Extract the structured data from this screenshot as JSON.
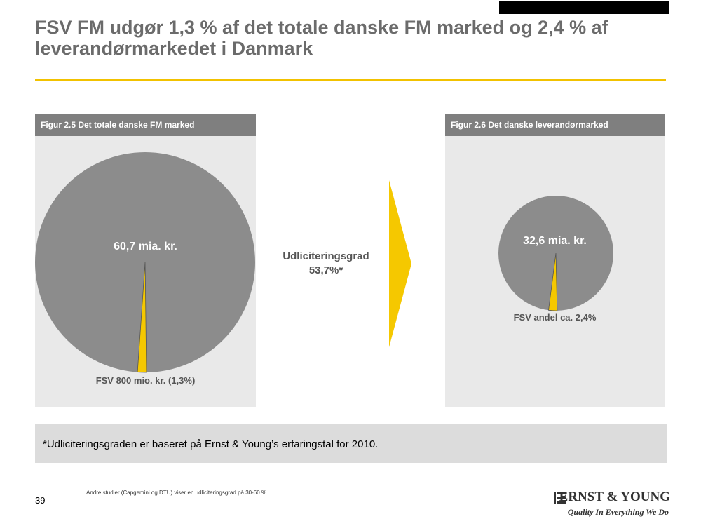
{
  "title": "FSV FM udgør 1,3 % af det totale danske FM marked og 2,4 % af leverandørmarkedet i Danmark",
  "middle": {
    "line1": "Udliciteringsgrad",
    "line2": "53,7%*"
  },
  "note": "*Udliciteringsgraden er baseret på Ernst & Young’s erfaringstal for 2010.",
  "footer": {
    "page_number": "39",
    "footnote": "Andre studier (Capgemini og DTU) viser en udliciteringsgrad på 30-60 %",
    "logo_name": "ERNST & YOUNG",
    "logo_tagline": "Quality In Everything We Do"
  },
  "colors": {
    "pie_grey": "#8c8c8c",
    "highlight": "#f5c800",
    "accent_rule": "#f2c200"
  },
  "chart_data": [
    {
      "type": "pie",
      "title": "Figur 2.5 Det totale danske FM marked",
      "total_label": "60,7 mia. kr.",
      "share_label": "FSV 800 mio. kr. (1,3%)",
      "slices": [
        {
          "label": "FSV",
          "value": 1.3
        },
        {
          "label": "",
          "value": 98.7
        }
      ]
    },
    {
      "type": "pie",
      "title": "Figur 2.6 Det danske leverandørmarked",
      "total_label": "32,6 mia. kr.",
      "share_label": "FSV andel ca. 2,4%",
      "slices": [
        {
          "label": "FSV",
          "value": 2.4
        },
        {
          "label": "",
          "value": 97.6
        }
      ]
    }
  ]
}
